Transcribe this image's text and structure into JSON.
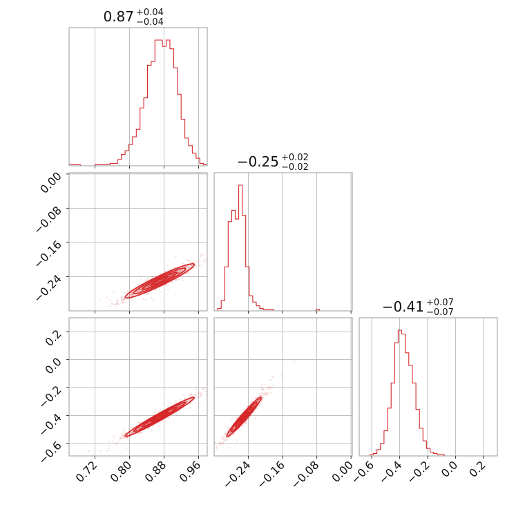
{
  "chart_data": {
    "type": "corner",
    "color": "#d62728",
    "grid": true,
    "parameters": [
      {
        "title": "0.87",
        "err_plus": "+0.04",
        "err_minus": "−0.04",
        "median": 0.87,
        "sigma": 0.04,
        "range": [
          0.66,
          0.98
        ],
        "ticks": [
          0.72,
          0.8,
          0.88,
          0.96
        ],
        "tick_labels": [
          "0.72",
          "0.80",
          "0.88",
          "0.96"
        ]
      },
      {
        "title": "−0.25",
        "err_plus": "+0.02",
        "err_minus": "−0.02",
        "median": -0.25,
        "sigma": 0.02,
        "range": [
          -0.32,
          0.003
        ],
        "ticks": [
          -0.24,
          -0.16,
          -0.08,
          0.0
        ],
        "tick_labels": [
          "−0.24",
          "−0.16",
          "−0.08",
          "0.00"
        ]
      },
      {
        "title": "−0.41",
        "err_plus": "+0.07",
        "err_minus": "−0.07",
        "median": -0.41,
        "sigma": 0.07,
        "range": [
          -0.69,
          0.3
        ],
        "ticks": [
          -0.6,
          -0.4,
          -0.2,
          0.0,
          0.2
        ],
        "tick_labels": [
          "−0.6",
          "−0.4",
          "−0.2",
          "0.0",
          "0.2"
        ]
      }
    ],
    "histograms": [
      {
        "param": 0,
        "bin_range": [
          0.66,
          0.98
        ],
        "counts": [
          1,
          1,
          1,
          0,
          0,
          0,
          0,
          1,
          1,
          1,
          1,
          2,
          2,
          5,
          9,
          12,
          17,
          23,
          29,
          46,
          54,
          80,
          83,
          100,
          100,
          95,
          100,
          93,
          78,
          57,
          37,
          22,
          16,
          10,
          6,
          2,
          1
        ]
      },
      {
        "param": 1,
        "bin_range": [
          -0.32,
          0.0
        ],
        "counts": [
          0,
          2,
          8,
          35,
          71,
          80,
          73,
          100,
          76,
          35,
          12,
          7,
          4,
          2,
          1,
          1,
          1,
          0,
          0,
          0,
          0,
          0,
          0,
          0,
          0,
          0,
          0,
          0,
          0,
          1,
          0,
          0,
          0,
          0,
          0,
          0,
          0,
          0,
          0
        ]
      },
      {
        "param": 2,
        "bin_range": [
          -0.69,
          0.3
        ],
        "counts": [
          0,
          0,
          0,
          1,
          2,
          5,
          10,
          20,
          38,
          58,
          90,
          100,
          97,
          82,
          72,
          58,
          37,
          22,
          12,
          6,
          3,
          2,
          1,
          1,
          0,
          0,
          0,
          0,
          0,
          0,
          0,
          0,
          0,
          0,
          0,
          0,
          0,
          0,
          0
        ]
      }
    ],
    "pairs": [
      {
        "x_param": 0,
        "y_param": 1,
        "correlation": 0.95
      },
      {
        "x_param": 0,
        "y_param": 2,
        "correlation": 0.98
      },
      {
        "x_param": 1,
        "y_param": 2,
        "correlation": 0.97
      }
    ],
    "contour_levels": [
      0.5,
      1.0,
      1.5,
      2.0
    ]
  }
}
